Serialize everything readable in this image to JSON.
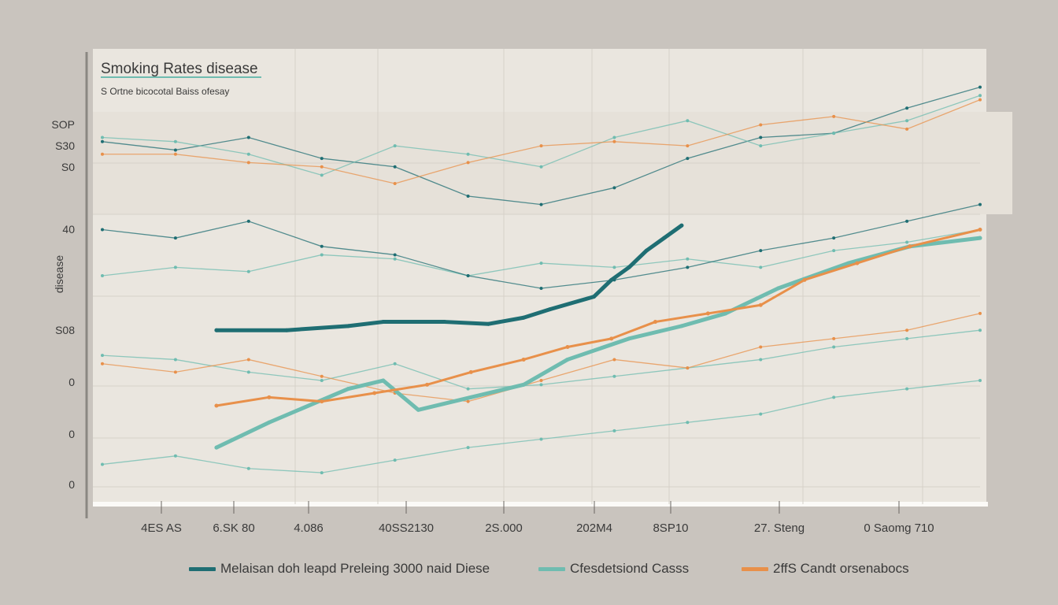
{
  "chart_data": {
    "type": "line",
    "title": "Smoking Rates disease",
    "subtitle": "S Ortne bicocotal Baiss ofesay",
    "ylabel": "disease",
    "y_tick_labels": [
      "SOP",
      "S30",
      "S0",
      "40",
      "S08",
      "0",
      "0",
      "0"
    ],
    "x_tick_labels": [
      "4ES AS",
      "6.SK 80",
      "4.086",
      "40SS2130",
      "2S.000",
      "202M4",
      "8SP10",
      "27. Steng",
      "0 Saomg 710"
    ],
    "xlim": [
      0,
      100
    ],
    "ylim": [
      0,
      100
    ],
    "series": [
      {
        "name": "Melaisan doh leapd Preleing 3000 naid Diese",
        "color": "#1f6e73",
        "x": [
          13,
          21,
          28,
          32,
          39,
          44,
          48,
          51,
          56,
          58,
          60,
          62,
          64,
          66
        ],
        "y": [
          40,
          40,
          41,
          42,
          42,
          41.5,
          43,
          45,
          48,
          52,
          55,
          59,
          62,
          65
        ]
      },
      {
        "name": "Cfesdetsiond Casss",
        "color": "#6fbcb0",
        "x": [
          13,
          19,
          28,
          32,
          36,
          42,
          48,
          53,
          60,
          66,
          71,
          77,
          85,
          92,
          100
        ],
        "y": [
          12,
          18,
          26,
          28,
          21,
          24,
          27,
          33,
          38,
          41,
          44,
          50,
          56,
          60,
          62
        ]
      },
      {
        "name": "2ffS Candt orsenabocs",
        "color": "#e8904a",
        "x": [
          13,
          19,
          25,
          31,
          37,
          42,
          48,
          53,
          58,
          63,
          69,
          75,
          80,
          86,
          92,
          100
        ],
        "y": [
          22,
          24,
          23,
          25,
          27,
          30,
          33,
          36,
          38,
          42,
          44,
          46,
          52,
          56,
          60,
          64
        ]
      }
    ],
    "background_lines": [
      {
        "color": "#1f6e73",
        "y": [
          85,
          83,
          86,
          81,
          79,
          72,
          70,
          74,
          81,
          86,
          87,
          93,
          98
        ]
      },
      {
        "color": "#6fbcb0",
        "y": [
          86,
          85,
          82,
          77,
          84,
          82,
          79,
          86,
          90,
          84,
          87,
          90,
          96
        ]
      },
      {
        "color": "#e8904a",
        "y": [
          82,
          82,
          80,
          79,
          75,
          80,
          84,
          85,
          84,
          89,
          91,
          88,
          95
        ]
      },
      {
        "color": "#6fbcb0",
        "y": [
          53,
          55,
          54,
          58,
          57,
          53,
          56,
          55,
          57,
          55,
          59,
          61,
          64
        ]
      },
      {
        "color": "#6fbcb0",
        "y": [
          34,
          33,
          30,
          28,
          32,
          26,
          27,
          29,
          31,
          33,
          36,
          38,
          40
        ]
      },
      {
        "color": "#e8904a",
        "y": [
          32,
          30,
          33,
          29,
          25,
          23,
          28,
          33,
          31,
          36,
          38,
          40,
          44
        ]
      },
      {
        "color": "#1f6e73",
        "y": [
          64,
          62,
          66,
          60,
          58,
          53,
          50,
          52,
          55,
          59,
          62,
          66,
          70
        ]
      },
      {
        "color": "#6fbcb0",
        "y": [
          8,
          10,
          7,
          6,
          9,
          12,
          14,
          16,
          18,
          20,
          24,
          26,
          28
        ]
      }
    ],
    "grid": true,
    "legend_position": "bottom"
  }
}
